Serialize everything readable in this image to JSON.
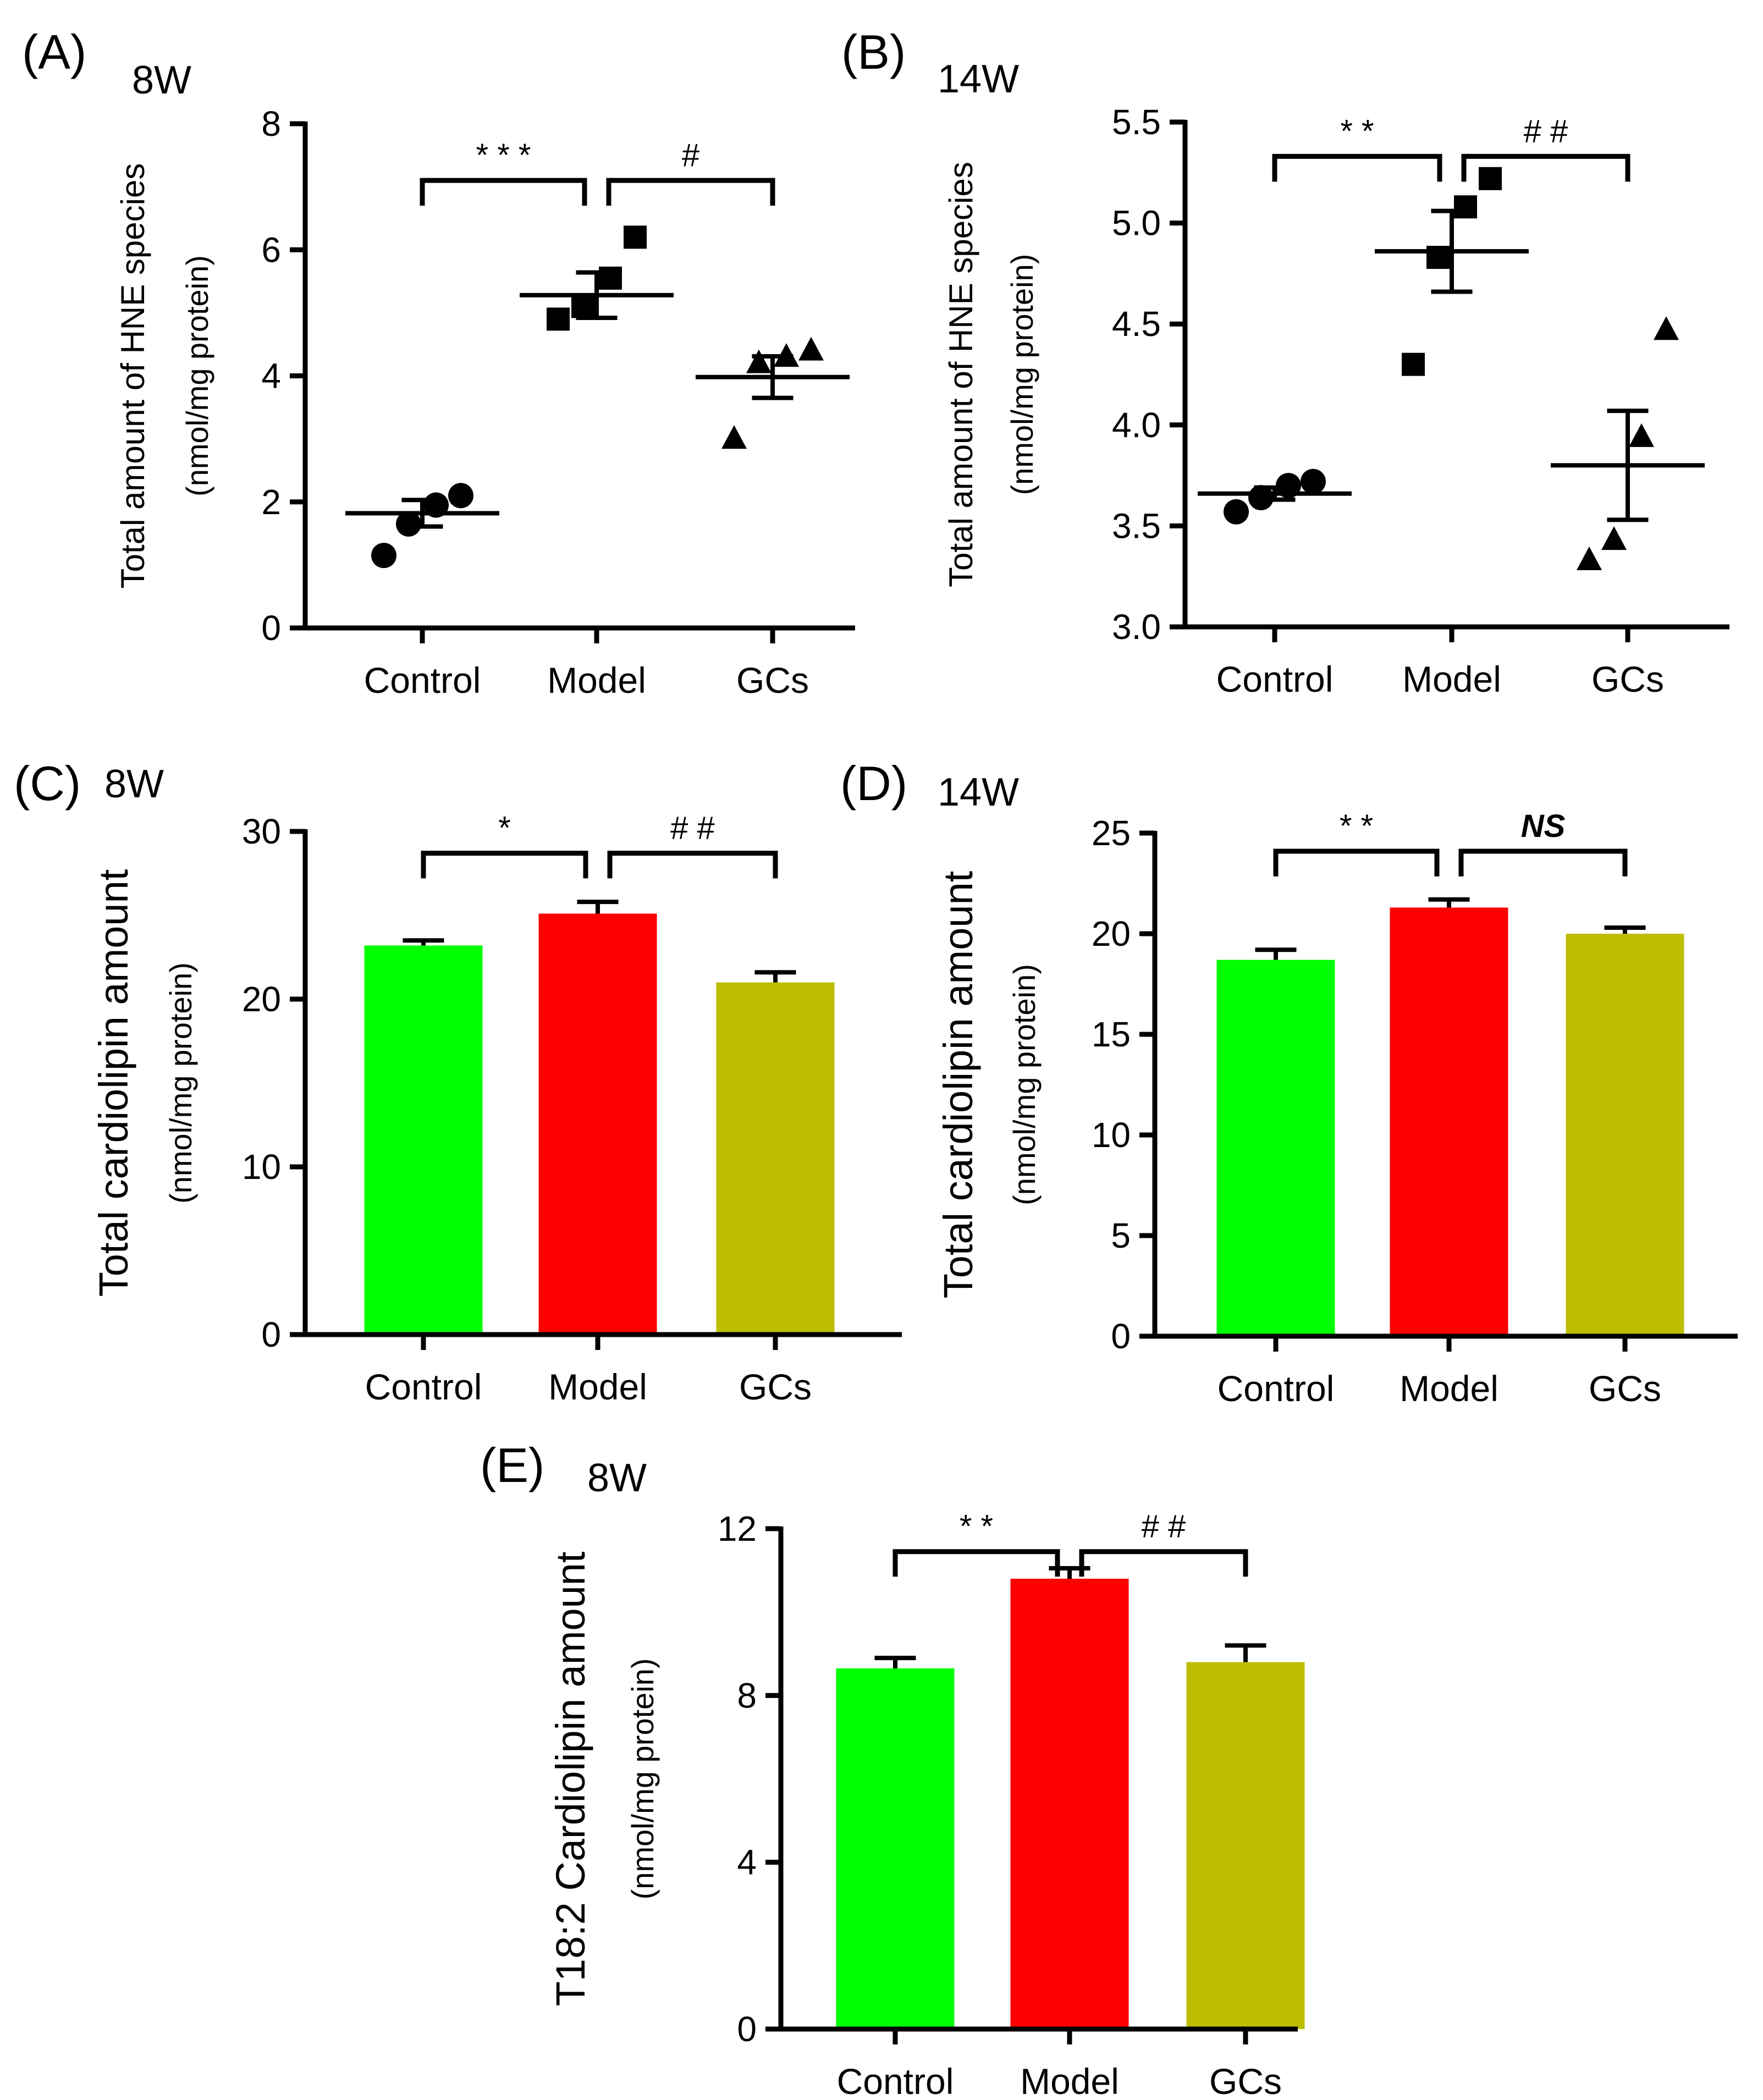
{
  "figure": {
    "categories": [
      "Control",
      "Model",
      "GCs"
    ],
    "colors": {
      "Control": "#00ff00",
      "Model": "#ff0000",
      "GCs": "#bdbd00",
      "ink": "#000000"
    }
  },
  "chart_data": [
    {
      "id": "A",
      "panel_label": "(A)",
      "subtitle": "8W",
      "type": "scatter",
      "title": "",
      "xlabel": "",
      "ylabel": "Total amount of HNE species",
      "ylabel2": "(nmol/mg protein)",
      "categories": [
        "Control",
        "Model",
        "GCs"
      ],
      "ylim": [
        0,
        8
      ],
      "yticks": [
        0,
        2,
        4,
        6,
        8
      ],
      "ytick_labels": [
        "0",
        "2",
        "4",
        "6",
        "8"
      ],
      "markers": [
        "circle",
        "square",
        "triangle"
      ],
      "points": [
        [
          1.15,
          1.65,
          1.95,
          2.1
        ],
        [
          4.9,
          5.1,
          5.55,
          6.2
        ],
        [
          3.0,
          4.2,
          4.3,
          4.4
        ]
      ],
      "mean": [
        1.82,
        5.28,
        3.98
      ],
      "sem": [
        0.21,
        0.36,
        0.33
      ],
      "sig": [
        {
          "from": 0,
          "to": 1,
          "label": "* * *",
          "height": 7.1
        },
        {
          "from": 1,
          "to": 2,
          "label": "#",
          "height": 7.1
        }
      ]
    },
    {
      "id": "B",
      "panel_label": "(B)",
      "subtitle": "14W",
      "type": "scatter",
      "title": "",
      "xlabel": "",
      "ylabel": "Total amount of HNE species",
      "ylabel2": "(nmol/mg protein)",
      "categories": [
        "Control",
        "Model",
        "GCs"
      ],
      "ylim": [
        3.0,
        5.5
      ],
      "yticks": [
        3.0,
        3.5,
        4.0,
        4.5,
        5.0,
        5.5
      ],
      "ytick_labels": [
        "3.0",
        "3.5",
        "4.0",
        "4.5",
        "5.0",
        "5.5"
      ],
      "markers": [
        "circle",
        "square",
        "triangle"
      ],
      "points": [
        [
          3.57,
          3.64,
          3.7,
          3.72
        ],
        [
          4.3,
          4.83,
          5.08,
          5.22
        ],
        [
          3.33,
          3.43,
          3.94,
          4.47
        ]
      ],
      "mean": [
        3.66,
        4.86,
        3.8
      ],
      "sem": [
        0.03,
        0.2,
        0.27
      ],
      "sig": [
        {
          "from": 0,
          "to": 1,
          "label": "* *",
          "height": 5.33
        },
        {
          "from": 1,
          "to": 2,
          "label": "# #",
          "height": 5.33
        }
      ]
    },
    {
      "id": "C",
      "panel_label": "(C)",
      "subtitle": "8W",
      "type": "bar",
      "title": "",
      "xlabel": "",
      "ylabel": "Total cardiolipin amount",
      "ylabel2": "(nmol/mg protein)",
      "categories": [
        "Control",
        "Model",
        "GCs"
      ],
      "ylim": [
        0,
        30
      ],
      "yticks": [
        0,
        10,
        20,
        30
      ],
      "ytick_labels": [
        "0",
        "10",
        "20",
        "30"
      ],
      "values": [
        23.2,
        25.1,
        21.0
      ],
      "sem": [
        0.3,
        0.7,
        0.6
      ],
      "sig": [
        {
          "from": 0,
          "to": 1,
          "label": "*",
          "height": 28.7
        },
        {
          "from": 1,
          "to": 2,
          "label": "# #",
          "height": 28.7
        }
      ]
    },
    {
      "id": "D",
      "panel_label": "(D)",
      "subtitle": "14W",
      "type": "bar",
      "title": "",
      "xlabel": "",
      "ylabel": "Total cardiolipin amount",
      "ylabel2": "(nmol/mg protein)",
      "categories": [
        "Control",
        "Model",
        "GCs"
      ],
      "ylim": [
        0,
        25
      ],
      "yticks": [
        0,
        5,
        10,
        15,
        20,
        25
      ],
      "ytick_labels": [
        "0",
        "5",
        "10",
        "15",
        "20",
        "25"
      ],
      "values": [
        18.7,
        21.3,
        20.0
      ],
      "sem": [
        0.5,
        0.4,
        0.3
      ],
      "sig": [
        {
          "from": 0,
          "to": 1,
          "label": "* *",
          "height": 24.1
        },
        {
          "from": 1,
          "to": 2,
          "label": "NS",
          "height": 24.1,
          "italic": true
        }
      ]
    },
    {
      "id": "E",
      "panel_label": "(E)",
      "subtitle": "8W",
      "type": "bar",
      "title": "",
      "xlabel": "",
      "ylabel": "T18:2 Cardiolipin amount",
      "ylabel2": "(nmol/mg protein)",
      "categories": [
        "Control",
        "Model",
        "GCs"
      ],
      "ylim": [
        0,
        12
      ],
      "yticks": [
        0,
        4,
        8,
        12
      ],
      "ytick_labels": [
        "0",
        "4",
        "8",
        "12"
      ],
      "values": [
        8.65,
        10.8,
        8.8
      ],
      "sem": [
        0.25,
        0.25,
        0.4
      ],
      "sig": [
        {
          "from": 0,
          "to": 1,
          "label": "* *",
          "height": 11.45
        },
        {
          "from": 1,
          "to": 2,
          "label": "# #",
          "height": 11.45
        }
      ]
    }
  ]
}
